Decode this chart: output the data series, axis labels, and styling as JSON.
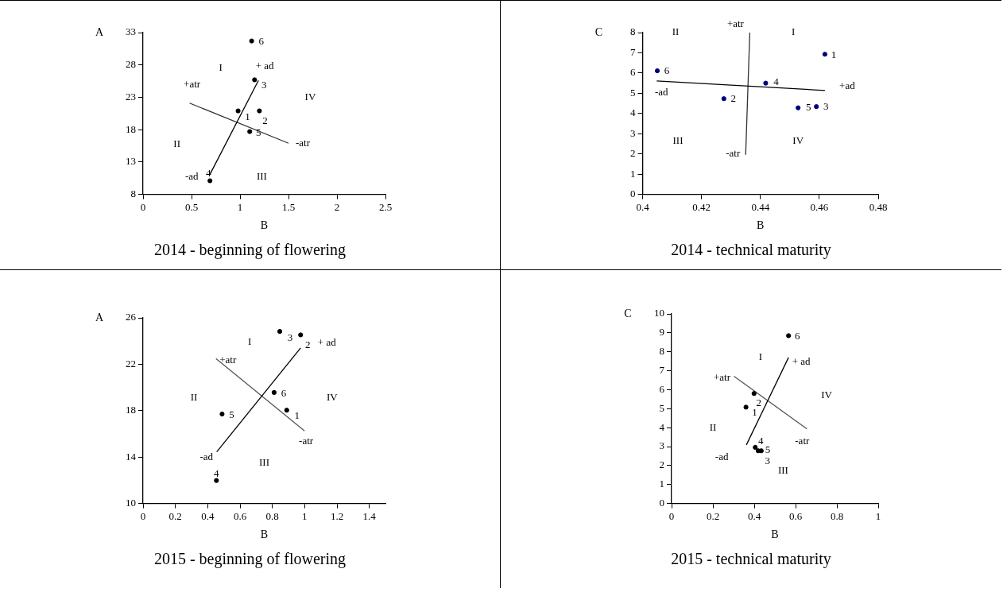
{
  "chart_data": [
    {
      "type": "scatter",
      "title": "2014 - beginning of flowering",
      "xlabel": "B",
      "ylabel": "A",
      "xlim": [
        0,
        2.5
      ],
      "xticks": [
        0,
        0.5,
        1,
        1.5,
        2,
        2.5
      ],
      "ylim": [
        8,
        33
      ],
      "yticks": [
        8,
        13,
        18,
        23,
        28,
        33
      ],
      "grid": false,
      "legend": false,
      "series": [
        {
          "marker": "circle",
          "color": "#000000",
          "x": [
            0.98,
            1.2,
            1.15,
            0.69,
            1.1,
            1.12
          ],
          "values": [
            20.9,
            20.9,
            25.7,
            10.1,
            17.7,
            31.7
          ]
        },
        {
          "type": "line",
          "marker": "none",
          "color": "#000000",
          "x": [
            0.69,
            1.19
          ],
          "values": [
            11.1,
            25.6
          ]
        },
        {
          "type": "line",
          "marker": "none",
          "color": "#333333",
          "x": [
            0.48,
            1.5
          ],
          "values": [
            22.1,
            15.9
          ]
        }
      ],
      "annotations": [
        {
          "text": "1",
          "x": 0.98,
          "y": 20.9
        },
        {
          "text": "2",
          "x": 1.2,
          "y": 20.9
        },
        {
          "text": "3",
          "x": 1.15,
          "y": 25.7
        },
        {
          "text": "4",
          "x": 0.69,
          "y": 10.1
        },
        {
          "text": "5",
          "x": 1.1,
          "y": 17.7
        },
        {
          "text": "6",
          "x": 1.12,
          "y": 31.7
        },
        {
          "text": "+ ad",
          "x": 1.19,
          "y": 25.6
        },
        {
          "text": "-ad",
          "x": 0.69,
          "y": 11.1
        },
        {
          "text": "+atr",
          "x": 0.48,
          "y": 22.1
        },
        {
          "text": "-atr",
          "x": 1.5,
          "y": 15.9
        },
        "I",
        "II",
        "III",
        "IV"
      ]
    },
    {
      "type": "scatter",
      "title": "2014 -  technical maturity",
      "xlabel": "B",
      "ylabel": "C",
      "xlim": [
        0.4,
        0.48
      ],
      "xticks": [
        0.4,
        0.42,
        0.44,
        0.46,
        0.48
      ],
      "ylim": [
        0,
        8
      ],
      "yticks": [
        0,
        1,
        2,
        3,
        4,
        5,
        6,
        7,
        8
      ],
      "grid": false,
      "legend": false,
      "series": [
        {
          "marker": "circle",
          "color": "#000080",
          "x": [
            0.4619,
            0.4276,
            0.459,
            0.4418,
            0.4528,
            0.405
          ],
          "values": [
            6.93,
            4.73,
            4.34,
            5.5,
            4.28,
            6.11
          ]
        },
        {
          "type": "line",
          "marker": "none",
          "color": "#000000",
          "x": [
            0.4048,
            0.4619
          ],
          "values": [
            5.61,
            5.14
          ]
        },
        {
          "type": "line",
          "marker": "none",
          "color": "#333333",
          "x": [
            0.4364,
            0.435
          ],
          "values": [
            8.0,
            1.96
          ]
        }
      ],
      "annotations": [
        {
          "text": "1",
          "x": 0.4619,
          "y": 6.93
        },
        {
          "text": "2",
          "x": 0.4276,
          "y": 4.73
        },
        {
          "text": "3",
          "x": 0.459,
          "y": 4.34
        },
        {
          "text": "4",
          "x": 0.4418,
          "y": 5.5
        },
        {
          "text": "5",
          "x": 0.4528,
          "y": 4.28
        },
        {
          "text": "6",
          "x": 0.405,
          "y": 6.11
        },
        {
          "text": "+ad",
          "x": 0.4619,
          "y": 5.14
        },
        {
          "text": "-ad",
          "x": 0.4048,
          "y": 5.61
        },
        {
          "text": "+atr",
          "x": 0.4364,
          "y": 8.0
        },
        {
          "text": "-atr",
          "x": 0.435,
          "y": 1.96
        },
        "I",
        "II",
        "III",
        "IV"
      ]
    },
    {
      "type": "scatter",
      "title": "2015 - beginning of flowering",
      "xlabel": "B",
      "ylabel": "A",
      "xlim": [
        0,
        1.5
      ],
      "xticks": [
        0,
        0.2,
        0.4,
        0.6,
        0.8,
        1,
        1.2,
        1.4
      ],
      "ylim": [
        10,
        26
      ],
      "yticks": [
        10,
        14,
        18,
        22,
        26
      ],
      "grid": false,
      "legend": false,
      "series": [
        {
          "marker": "circle",
          "color": "#000000",
          "x": [
            0.889,
            0.975,
            0.846,
            0.454,
            0.489,
            0.811
          ],
          "values": [
            18.04,
            24.53,
            24.83,
            11.98,
            17.71,
            19.57
          ]
        },
        {
          "type": "line",
          "marker": "none",
          "color": "#000000",
          "x": [
            0.456,
            0.975
          ],
          "values": [
            14.45,
            23.41
          ]
        },
        {
          "type": "line",
          "marker": "none",
          "color": "#555555",
          "x": [
            0.451,
            0.999
          ],
          "values": [
            22.49,
            16.26
          ]
        }
      ],
      "annotations": [
        {
          "text": "1",
          "x": 0.889,
          "y": 18.04
        },
        {
          "text": "2",
          "x": 0.975,
          "y": 24.53
        },
        {
          "text": "3",
          "x": 0.846,
          "y": 24.83
        },
        {
          "text": "4",
          "x": 0.454,
          "y": 11.98
        },
        {
          "text": "5",
          "x": 0.489,
          "y": 17.71
        },
        {
          "text": "6",
          "x": 0.811,
          "y": 19.57
        },
        {
          "text": "+ ad",
          "x": 0.975,
          "y": 23.41
        },
        {
          "text": "-ad",
          "x": 0.456,
          "y": 14.45
        },
        {
          "text": "+atr",
          "x": 0.451,
          "y": 22.49
        },
        {
          "text": "-atr",
          "x": 0.999,
          "y": 16.26
        },
        "I",
        "II",
        "III",
        "IV"
      ]
    },
    {
      "type": "scatter",
      "title": "2015 -  technical maturity",
      "xlabel": "B",
      "ylabel": "C",
      "xlim": [
        0,
        1
      ],
      "xticks": [
        0,
        0.2,
        0.4,
        0.6,
        0.8,
        1
      ],
      "ylim": [
        0,
        10
      ],
      "yticks": [
        0,
        1,
        2,
        3,
        4,
        5,
        6,
        7,
        8,
        9,
        10
      ],
      "grid": false,
      "legend": false,
      "series": [
        {
          "marker": "circle",
          "color": "#000000",
          "x": [
            0.36,
            0.399,
            0.434,
            0.405,
            0.419,
            0.566
          ],
          "values": [
            5.08,
            5.8,
            2.78,
            2.96,
            2.78,
            8.85
          ]
        },
        {
          "type": "line",
          "marker": "none",
          "color": "#000000",
          "x": [
            0.362,
            0.566
          ],
          "values": [
            3.09,
            7.7
          ]
        },
        {
          "type": "line",
          "marker": "none",
          "color": "#555555",
          "x": [
            0.302,
            0.655
          ],
          "values": [
            6.71,
            3.93
          ]
        }
      ],
      "annotations": [
        {
          "text": "1",
          "x": 0.36,
          "y": 5.08
        },
        {
          "text": "2",
          "x": 0.399,
          "y": 5.8
        },
        {
          "text": "3",
          "x": 0.434,
          "y": 2.78
        },
        {
          "text": "4",
          "x": 0.405,
          "y": 2.96
        },
        {
          "text": "5",
          "x": 0.419,
          "y": 2.78
        },
        {
          "text": "6",
          "x": 0.566,
          "y": 8.85
        },
        {
          "text": "+ ad",
          "x": 0.566,
          "y": 7.7
        },
        {
          "text": "-ad",
          "x": 0.362,
          "y": 3.09
        },
        {
          "text": "+atr",
          "x": 0.302,
          "y": 6.71
        },
        {
          "text": "-atr",
          "x": 0.655,
          "y": 3.93
        },
        "I",
        "II",
        "III",
        "IV"
      ]
    }
  ]
}
